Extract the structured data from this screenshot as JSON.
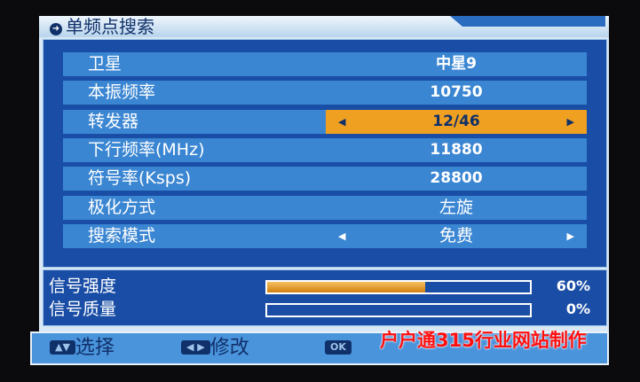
{
  "title": "单频点搜索",
  "rows": [
    {
      "label": "卫星",
      "value": "中星9",
      "arrows": false
    },
    {
      "label": "本振频率",
      "value": "10750",
      "arrows": false
    },
    {
      "label": "转发器",
      "value": "12/46",
      "arrows": true,
      "selected": true
    },
    {
      "label": "下行频率(MHz)",
      "value": "11880",
      "arrows": false
    },
    {
      "label": "符号率(Ksps)",
      "value": "28800",
      "arrows": false
    },
    {
      "label": "极化方式",
      "value": "左旋",
      "arrows": false
    },
    {
      "label": "搜索模式",
      "value": "免费",
      "arrows": true
    }
  ],
  "signal": {
    "strength_label": "信号强度",
    "strength_value": "60%",
    "strength_level": 60,
    "quality_label": "信号质量",
    "quality_value": "0%",
    "quality_level": 0
  },
  "footer": {
    "up_down_key": "▲▼",
    "select": "选择",
    "left_right_key": "◀ ▶",
    "modify": "修改",
    "ok_key": "OK"
  },
  "watermark": "户户通315行业网站制作",
  "colors": {
    "panel": "#1a4ea6",
    "row": "#3b86d2",
    "selected": "#f0a020",
    "bar_fill": "#e09020"
  }
}
